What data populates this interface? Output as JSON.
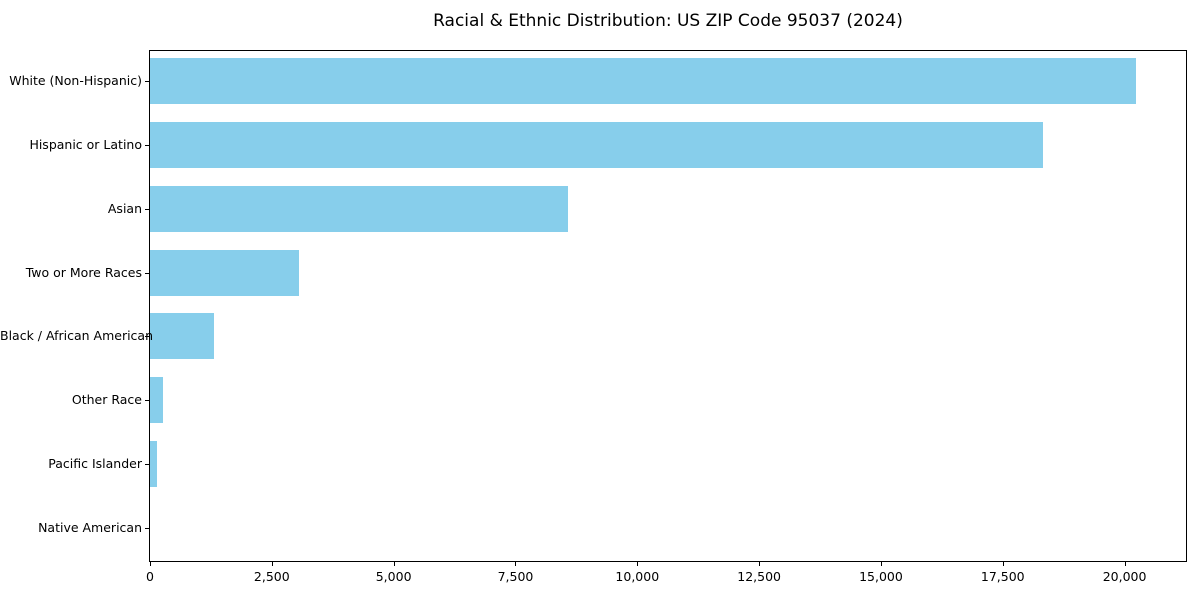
{
  "chart_data": {
    "type": "bar",
    "orientation": "horizontal",
    "title": "Racial & Ethnic Distribution: US ZIP Code 95037 (2024)",
    "categories": [
      "White (Non-Hispanic)",
      "Hispanic or Latino",
      "Asian",
      "Two or More Races",
      "Black / African American",
      "Other Race",
      "Pacific Islander",
      "Native American"
    ],
    "values": [
      20240,
      18320,
      8570,
      3050,
      1310,
      270,
      150,
      0
    ],
    "xlabel": "",
    "ylabel": "",
    "xlim": [
      0,
      21260
    ],
    "x_ticks": [
      0,
      2500,
      5000,
      7500,
      10000,
      12500,
      15000,
      17500,
      20000
    ],
    "x_tick_labels": [
      "0",
      "2,500",
      "5,000",
      "7,500",
      "10,000",
      "12,500",
      "15,000",
      "17,500",
      "20,000"
    ],
    "bar_color": "#87CEEB",
    "axis_color": "#000000",
    "background_color": "#FFFFFF",
    "grid": false,
    "legend": false
  }
}
